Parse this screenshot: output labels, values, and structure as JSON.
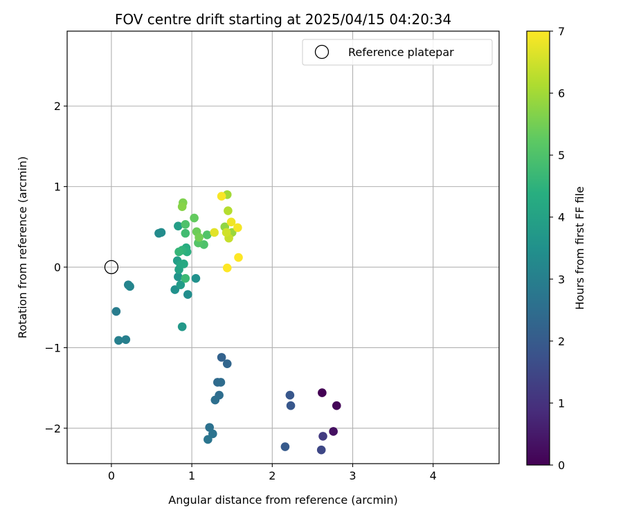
{
  "chart_data": {
    "type": "scatter",
    "title": "FOV centre drift starting at 2025/04/15 04:20:34",
    "xlabel": "Angular distance from reference (arcmin)",
    "ylabel": "Rotation from reference (arcmin)",
    "xlim": [
      -0.55,
      4.82
    ],
    "ylim": [
      -2.44,
      2.93
    ],
    "xticks": [
      0,
      1,
      2,
      3,
      4
    ],
    "yticks": [
      -2,
      -1,
      0,
      1,
      2
    ],
    "grid": true,
    "legend": {
      "position": "top-right",
      "entries": [
        "Reference platepar"
      ]
    },
    "reference_point": {
      "label": "Reference platepar",
      "x": 0,
      "y": 0
    },
    "colorbar": {
      "label": "Hours from first FF file",
      "colormap": "viridis",
      "range": [
        0,
        7
      ],
      "ticks": [
        0,
        1,
        2,
        3,
        4,
        5,
        6,
        7
      ]
    },
    "series": [
      {
        "color_variable": "Hours from first FF file",
        "points": [
          {
            "x": 2.62,
            "y": -1.56,
            "c": 0.0
          },
          {
            "x": 2.8,
            "y": -1.72,
            "c": 0.1
          },
          {
            "x": 2.76,
            "y": -2.04,
            "c": 0.3
          },
          {
            "x": 2.63,
            "y": -2.1,
            "c": 1.2
          },
          {
            "x": 2.61,
            "y": -2.27,
            "c": 1.5
          },
          {
            "x": 2.22,
            "y": -1.59,
            "c": 1.9
          },
          {
            "x": 2.23,
            "y": -1.72,
            "c": 1.9
          },
          {
            "x": 2.16,
            "y": -2.23,
            "c": 2.0
          },
          {
            "x": 1.37,
            "y": -1.12,
            "c": 2.2
          },
          {
            "x": 1.44,
            "y": -1.2,
            "c": 2.3
          },
          {
            "x": 1.32,
            "y": -1.43,
            "c": 2.4
          },
          {
            "x": 1.36,
            "y": -1.43,
            "c": 2.45
          },
          {
            "x": 1.34,
            "y": -1.59,
            "c": 2.5
          },
          {
            "x": 1.29,
            "y": -1.65,
            "c": 2.55
          },
          {
            "x": 1.22,
            "y": -1.99,
            "c": 2.6
          },
          {
            "x": 1.26,
            "y": -2.07,
            "c": 2.65
          },
          {
            "x": 1.2,
            "y": -2.14,
            "c": 2.7
          },
          {
            "x": 0.06,
            "y": -0.55,
            "c": 2.9
          },
          {
            "x": 0.09,
            "y": -0.91,
            "c": 3.0
          },
          {
            "x": 0.18,
            "y": -0.9,
            "c": 3.0
          },
          {
            "x": 0.21,
            "y": -0.22,
            "c": 3.1
          },
          {
            "x": 0.23,
            "y": -0.24,
            "c": 3.15
          },
          {
            "x": 0.59,
            "y": 0.42,
            "c": 3.3
          },
          {
            "x": 0.62,
            "y": 0.43,
            "c": 3.35
          },
          {
            "x": 0.95,
            "y": -0.34,
            "c": 3.4
          },
          {
            "x": 0.79,
            "y": -0.28,
            "c": 3.5
          },
          {
            "x": 1.05,
            "y": -0.14,
            "c": 3.5
          },
          {
            "x": 0.83,
            "y": -0.12,
            "c": 3.6
          },
          {
            "x": 0.88,
            "y": -0.74,
            "c": 3.7
          },
          {
            "x": 0.86,
            "y": -0.22,
            "c": 3.8
          },
          {
            "x": 0.83,
            "y": 0.51,
            "c": 3.9
          },
          {
            "x": 0.82,
            "y": 0.08,
            "c": 3.9
          },
          {
            "x": 0.84,
            "y": -0.03,
            "c": 4.0
          },
          {
            "x": 0.86,
            "y": 0.03,
            "c": 4.1
          },
          {
            "x": 0.9,
            "y": 0.04,
            "c": 4.2
          },
          {
            "x": 0.93,
            "y": 0.24,
            "c": 4.3
          },
          {
            "x": 0.94,
            "y": 0.19,
            "c": 4.4
          },
          {
            "x": 0.88,
            "y": 0.21,
            "c": 4.5
          },
          {
            "x": 0.84,
            "y": 0.19,
            "c": 4.6
          },
          {
            "x": 0.92,
            "y": -0.14,
            "c": 4.7
          },
          {
            "x": 0.92,
            "y": 0.42,
            "c": 4.8
          },
          {
            "x": 0.92,
            "y": 0.53,
            "c": 5.0
          },
          {
            "x": 1.15,
            "y": 0.28,
            "c": 5.0
          },
          {
            "x": 1.19,
            "y": 0.4,
            "c": 5.05
          },
          {
            "x": 1.08,
            "y": 0.3,
            "c": 5.1
          },
          {
            "x": 1.03,
            "y": 0.61,
            "c": 5.3
          },
          {
            "x": 1.06,
            "y": 0.44,
            "c": 5.4
          },
          {
            "x": 1.09,
            "y": 0.37,
            "c": 5.5
          },
          {
            "x": 0.89,
            "y": 0.8,
            "c": 5.6
          },
          {
            "x": 0.88,
            "y": 0.75,
            "c": 5.7
          },
          {
            "x": 1.41,
            "y": 0.5,
            "c": 5.8
          },
          {
            "x": 1.5,
            "y": 0.43,
            "c": 5.9
          },
          {
            "x": 1.44,
            "y": 0.9,
            "c": 6.0
          },
          {
            "x": 1.45,
            "y": 0.7,
            "c": 6.2
          },
          {
            "x": 1.46,
            "y": 0.36,
            "c": 6.4
          },
          {
            "x": 1.43,
            "y": 0.43,
            "c": 6.5
          },
          {
            "x": 1.28,
            "y": 0.43,
            "c": 6.7
          },
          {
            "x": 1.49,
            "y": 0.56,
            "c": 6.85
          },
          {
            "x": 1.57,
            "y": 0.49,
            "c": 6.9
          },
          {
            "x": 1.37,
            "y": 0.88,
            "c": 6.95
          },
          {
            "x": 1.58,
            "y": 0.12,
            "c": 7.0
          },
          {
            "x": 1.44,
            "y": -0.01,
            "c": 7.0
          }
        ]
      }
    ]
  }
}
